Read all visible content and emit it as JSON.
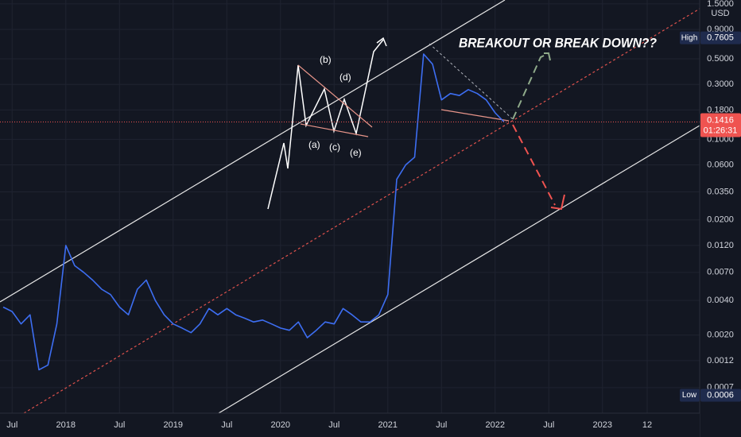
{
  "chart_data": {
    "type": "line",
    "log_scale": true,
    "grid": true,
    "currency": "USD",
    "annotation": "BREAKOUT OR BREAK DOWN??",
    "wave_labels": [
      "(a)",
      "(b)",
      "(c)",
      "(d)",
      "(e)"
    ],
    "high": {
      "label": "High",
      "value": 0.7605
    },
    "low": {
      "label": "Low",
      "value": 0.0006
    },
    "last_price": 0.1416,
    "countdown": "01:26:31",
    "categories": [
      null,
      "Jul",
      null,
      null,
      null,
      null,
      null,
      "2018",
      null,
      null,
      null,
      null,
      null,
      "Jul",
      null,
      null,
      null,
      null,
      null,
      "2019",
      null,
      null,
      null,
      null,
      null,
      "Jul",
      null,
      null,
      null,
      null,
      null,
      "2020",
      null,
      null,
      null,
      null,
      null,
      "Jul",
      null,
      null,
      null,
      null,
      null,
      "2021",
      null,
      null,
      null,
      null,
      null,
      "Jul",
      null,
      null,
      null,
      null,
      null,
      "2022",
      null,
      null,
      null,
      null,
      null,
      "Jul",
      null,
      null,
      null,
      null,
      null,
      "2023",
      null,
      null,
      null,
      null,
      "12",
      null,
      null,
      null,
      null
    ],
    "series": [
      {
        "color": "#3d6ef2",
        "values": [
          0.0035,
          0.0032,
          0.0025,
          0.003,
          0.001,
          0.0011,
          0.0025,
          0.012,
          0.008,
          0.007,
          0.006,
          0.005,
          0.0045,
          0.0035,
          0.003,
          0.005,
          0.006,
          0.004,
          0.003,
          0.0025,
          0.0023,
          0.0021,
          0.0025,
          0.0034,
          0.003,
          0.0034,
          0.003,
          0.0028,
          0.0026,
          0.0027,
          0.0025,
          0.0023,
          0.0022,
          0.0026,
          0.0019,
          0.0022,
          0.0026,
          0.0025,
          0.0034,
          0.003,
          0.0026,
          0.0026,
          0.003,
          0.0045,
          0.045,
          0.06,
          0.07,
          0.55,
          0.45,
          0.22,
          0.25,
          0.24,
          0.27,
          0.25,
          0.22,
          0.17,
          0.1416,
          null,
          null,
          null,
          null,
          null,
          null,
          null,
          null,
          null,
          null,
          null,
          null,
          null,
          null,
          null,
          null,
          null,
          null,
          null,
          null
        ]
      }
    ],
    "ylim": [
      0.00042,
      1.62
    ],
    "yticks": [
      {
        "value": 1.5,
        "label": "1.5000"
      },
      {
        "value": 0.9,
        "label": "0.9000"
      },
      {
        "value": 0.5,
        "label": "0.5000"
      },
      {
        "value": 0.3,
        "label": "0.3000"
      },
      {
        "value": 0.18,
        "label": "0.1800"
      },
      {
        "value": 0.1,
        "label": "0.1000"
      },
      {
        "value": 0.06,
        "label": "0.0600"
      },
      {
        "value": 0.035,
        "label": "0.0350"
      },
      {
        "value": 0.02,
        "label": "0.0200"
      },
      {
        "value": 0.012,
        "label": "0.0120"
      },
      {
        "value": 0.007,
        "label": "0.0070"
      },
      {
        "value": 0.004,
        "label": "0.0040"
      },
      {
        "value": 0.002,
        "label": "0.0020"
      },
      {
        "value": 0.0012,
        "label": "0.0012"
      },
      {
        "value": 0.0007,
        "label": "0.0007"
      }
    ]
  }
}
